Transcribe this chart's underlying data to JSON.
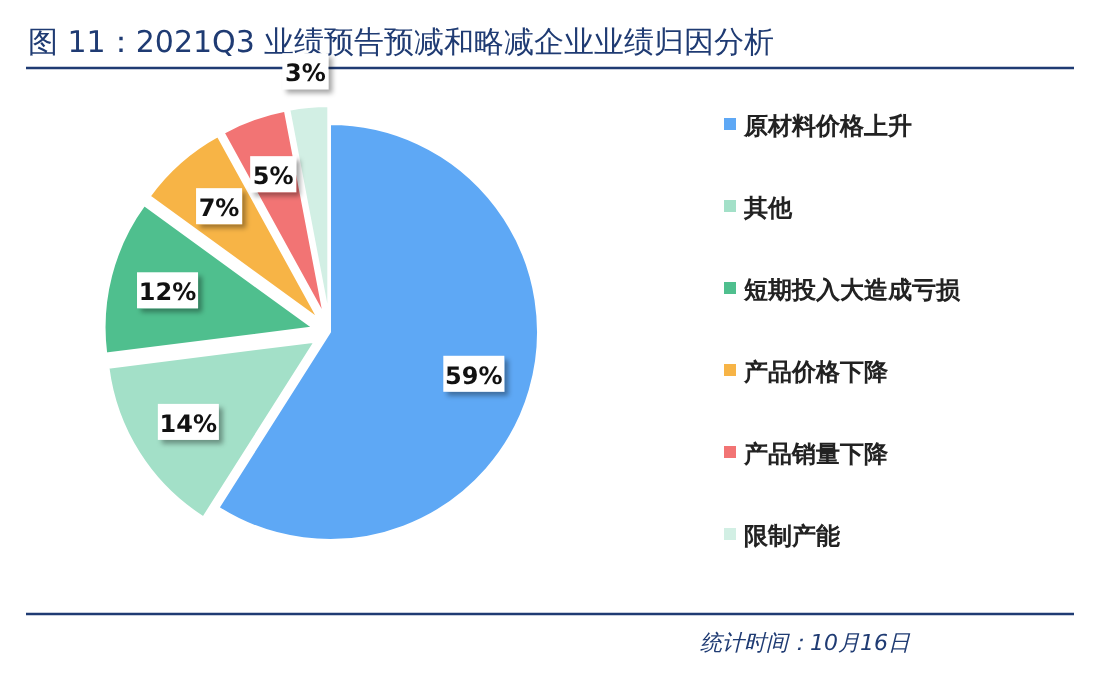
{
  "chart_data": {
    "type": "pie",
    "title": "图 11：2021Q3 业绩预告预减和略减企业业绩归因分析",
    "categories": [
      "原材料价格上升",
      "其他",
      "短期投入大造成亏损",
      "产品价格下降",
      "产品销量下降",
      "限制产能"
    ],
    "values": [
      59,
      14,
      12,
      7,
      5,
      3
    ],
    "value_labels": [
      "59%",
      "14%",
      "12%",
      "7%",
      "5%",
      "3%"
    ],
    "colors": [
      "#5ea8f5",
      "#a3e0c8",
      "#4fbf8e",
      "#f7b446",
      "#f27474",
      "#d2efe4"
    ],
    "legend": "right",
    "annotations": [
      "统计时间：10月16日"
    ]
  }
}
